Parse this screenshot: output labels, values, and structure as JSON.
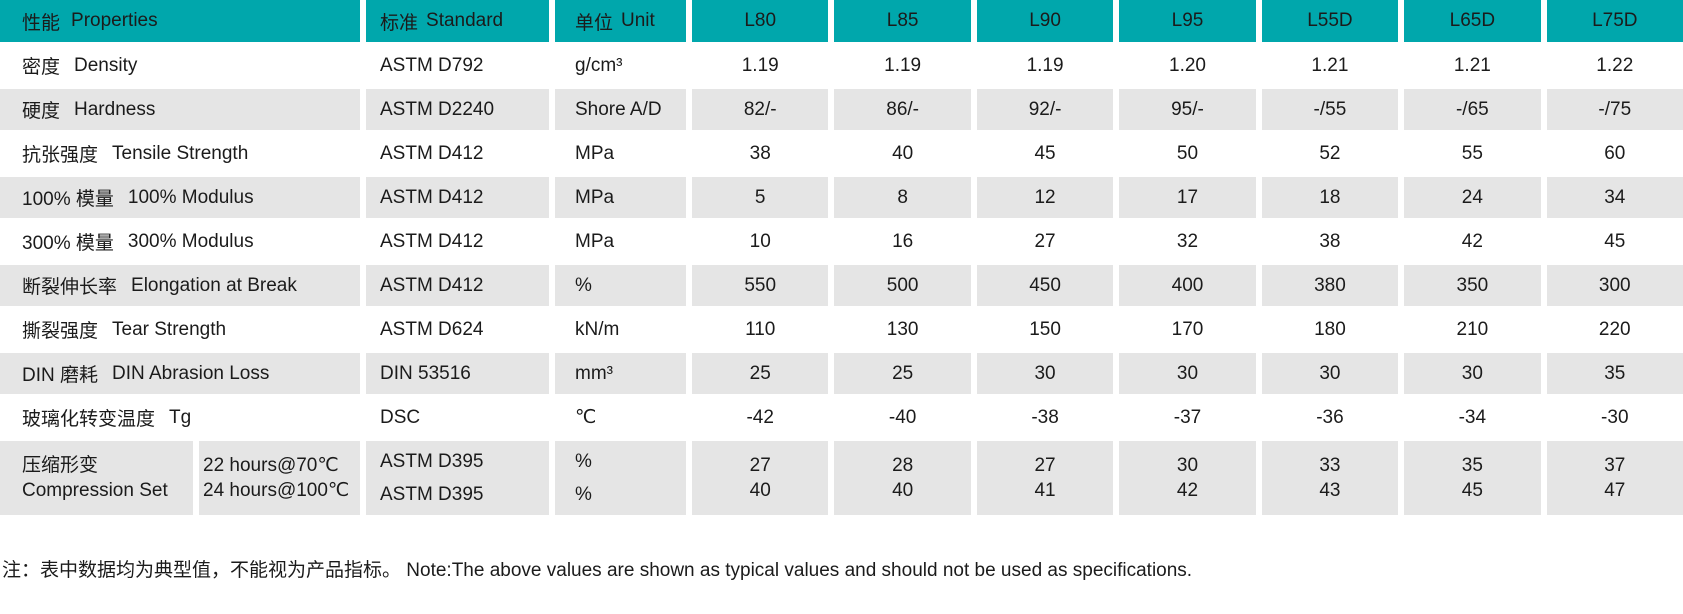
{
  "colors": {
    "page_bg": "#FFFFFF",
    "header_bg": "#00A7AC",
    "row_alt_bg": "#E5E5E5",
    "text": "#1B1B1B"
  },
  "table": {
    "header": {
      "properties": {
        "zh": "性能",
        "en": "Properties"
      },
      "standard": {
        "zh": "标准",
        "en": "Standard"
      },
      "unit": {
        "zh": "单位",
        "en": "Unit"
      },
      "grades": [
        "L80",
        "L85",
        "L90",
        "L95",
        "L55D",
        "L65D",
        "L75D"
      ]
    },
    "rows": [
      {
        "zh": "密度",
        "en": "Density",
        "standard": "ASTM D792",
        "unit": "g/cm³",
        "values": [
          "1.19",
          "1.19",
          "1.19",
          "1.20",
          "1.21",
          "1.21",
          "1.22"
        ]
      },
      {
        "zh": "硬度",
        "en": "Hardness",
        "standard": "ASTM D2240",
        "unit": "Shore A/D",
        "values": [
          "82/-",
          "86/-",
          "92/-",
          "95/-",
          "-/55",
          "-/65",
          "-/75"
        ]
      },
      {
        "zh": "抗张强度",
        "en": "Tensile Strength",
        "standard": "ASTM D412",
        "unit": "MPa",
        "values": [
          "38",
          "40",
          "45",
          "50",
          "52",
          "55",
          "60"
        ]
      },
      {
        "zh": "100% 模量",
        "en": "100% Modulus",
        "standard": "ASTM D412",
        "unit": "MPa",
        "values": [
          "5",
          "8",
          "12",
          "17",
          "18",
          "24",
          "34"
        ]
      },
      {
        "zh": "300% 模量",
        "en": "300% Modulus",
        "standard": "ASTM D412",
        "unit": "MPa",
        "values": [
          "10",
          "16",
          "27",
          "32",
          "38",
          "42",
          "45"
        ]
      },
      {
        "zh": "断裂伸长率",
        "en": "Elongation at Break",
        "standard": "ASTM D412",
        "unit": "%",
        "values": [
          "550",
          "500",
          "450",
          "400",
          "380",
          "350",
          "300"
        ]
      },
      {
        "zh": "撕裂强度",
        "en": "Tear Strength",
        "standard": "ASTM D624",
        "unit": "kN/m",
        "values": [
          "110",
          "130",
          "150",
          "170",
          "180",
          "210",
          "220"
        ]
      },
      {
        "zh": "DIN 磨耗",
        "en": "DIN Abrasion Loss",
        "standard": "DIN 53516",
        "unit": "mm³",
        "values": [
          "25",
          "25",
          "30",
          "30",
          "30",
          "30",
          "35"
        ]
      },
      {
        "zh": "玻璃化转变温度",
        "en": "Tg",
        "standard": "DSC",
        "unit": "℃",
        "values": [
          "-42",
          "-40",
          "-38",
          "-37",
          "-36",
          "-34",
          "-30"
        ]
      }
    ],
    "compression_row": {
      "zh": "压缩形变",
      "en": "Compression Set",
      "conditions": [
        "22 hours@70℃",
        "24 hours@100℃"
      ],
      "standards": [
        "ASTM D395",
        "ASTM D395"
      ],
      "units": [
        "%",
        "%"
      ],
      "values": [
        [
          "27",
          "40"
        ],
        [
          "28",
          "40"
        ],
        [
          "27",
          "41"
        ],
        [
          "30",
          "42"
        ],
        [
          "33",
          "43"
        ],
        [
          "35",
          "45"
        ],
        [
          "37",
          "47"
        ]
      ]
    },
    "note": "注：表中数据均为典型值，不能视为产品指标。 Note:The above values are shown as typical values and should not be used as specifications."
  }
}
